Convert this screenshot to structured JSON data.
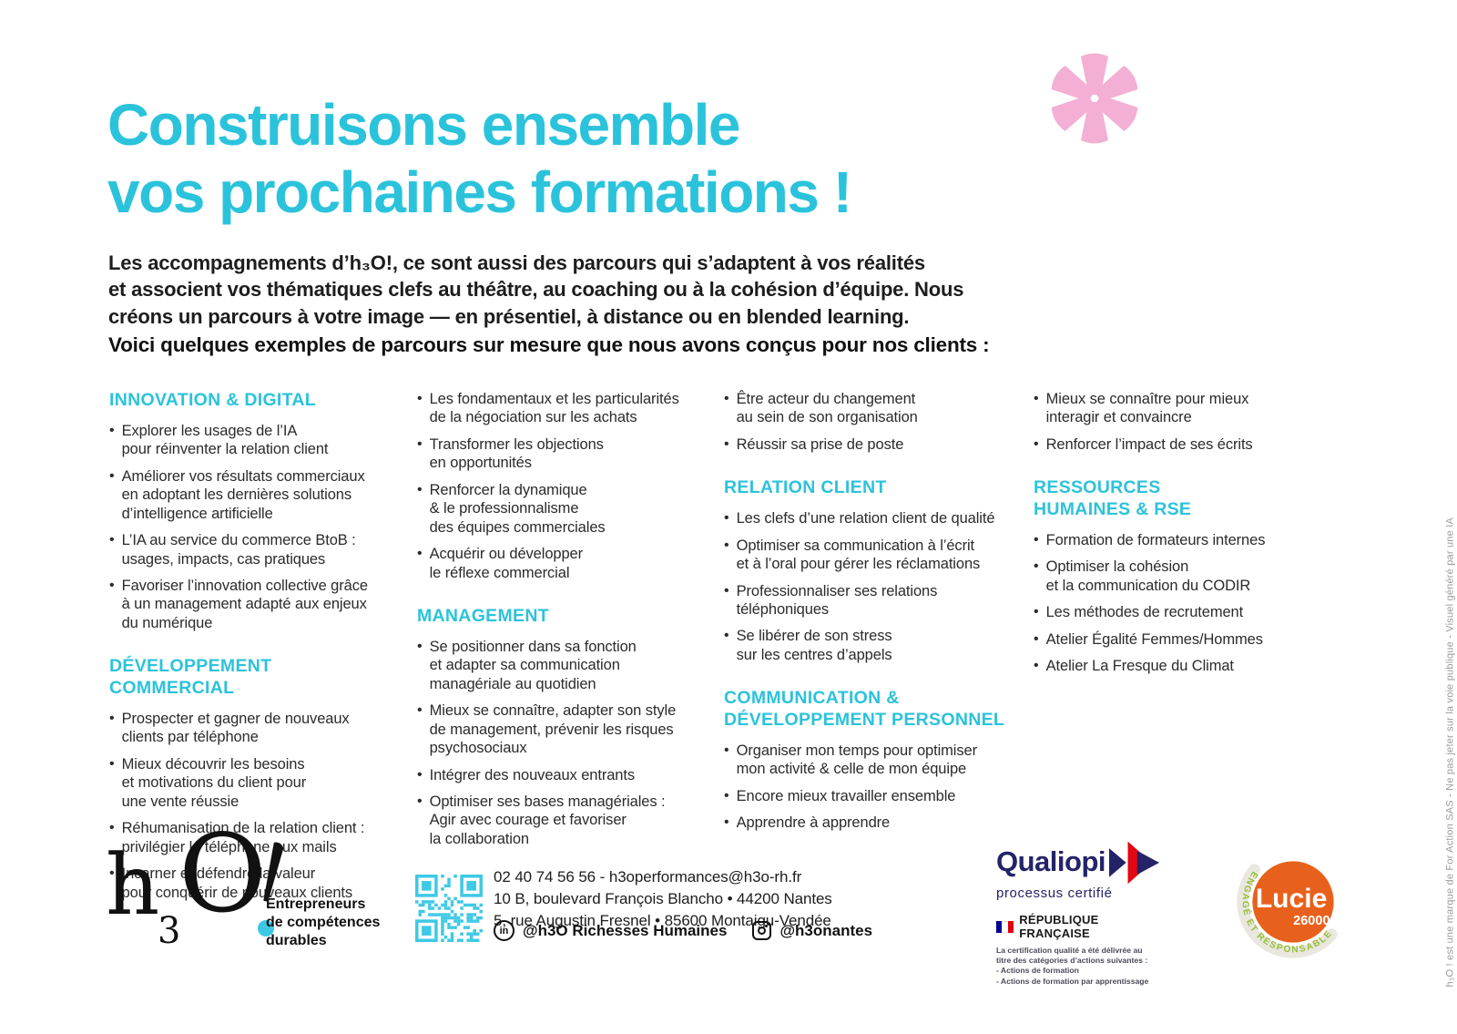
{
  "colors": {
    "accent_cyan": "#2bc3db",
    "pink": "#f3afd4",
    "qualiopi_navy": "#252368",
    "qualiopi_red": "#e30613",
    "flag_blue": "#000091",
    "flag_red": "#e1000f",
    "lucie_orange": "#e8611c",
    "lucie_green": "#97bf36",
    "text": "#2b2b2b"
  },
  "header": {
    "title": "Construisons ensemble\nvos prochaines formations !",
    "asterisk_icon": "asterisk"
  },
  "intro": "Les accompagnements d’h₃O!, ce sont aussi des parcours qui s’adaptent à vos réalités\net associent vos thématiques clefs au théâtre, au coaching ou à la cohésion d’équipe. Nous\ncréons un parcours à votre image — en présentiel, à distance ou en blended learning.",
  "lead_in": "Voici quelques exemples de parcours sur mesure que nous avons conçus pour nos clients :",
  "columns": [
    {
      "blocks": [
        {
          "type": "heading",
          "text": "INNOVATION & DIGITAL"
        },
        {
          "type": "bullet",
          "text": "Explorer les usages de l’IA\npour réinventer la relation client"
        },
        {
          "type": "bullet",
          "text": "Améliorer vos résultats commerciaux\nen adoptant les dernières solutions\nd’intelligence artificielle"
        },
        {
          "type": "bullet",
          "text": "L’IA au service du commerce BtoB :\nusages, impacts, cas pratiques"
        },
        {
          "type": "bullet",
          "text": "Favoriser l’innovation collective grâce\nà un management adapté aux enjeux\ndu numérique"
        },
        {
          "type": "heading",
          "text": "DÉVELOPPEMENT COMMERCIAL"
        },
        {
          "type": "bullet",
          "text": "Prospecter et gagner de nouveaux\nclients par téléphone"
        },
        {
          "type": "bullet",
          "text": "Mieux découvrir les besoins\net motivations du client pour\nune vente réussie"
        },
        {
          "type": "bullet",
          "text": "Réhumanisation de la relation client :\nprivilégier le téléphone aux mails"
        },
        {
          "type": "bullet",
          "text": "Incarner et défendre la valeur\npour conquérir de nouveaux clients"
        }
      ]
    },
    {
      "blocks": [
        {
          "type": "bullet",
          "text": "Les fondamentaux et les particularités\nde la négociation sur les achats"
        },
        {
          "type": "bullet",
          "text": "Transformer les objections\nen opportunités"
        },
        {
          "type": "bullet",
          "text": "Renforcer la dynamique\n& le professionnalisme\ndes équipes commerciales"
        },
        {
          "type": "bullet",
          "text": "Acquérir ou développer\nle réflexe commercial"
        },
        {
          "type": "heading",
          "text": "MANAGEMENT"
        },
        {
          "type": "bullet",
          "text": "Se positionner dans sa fonction\net adapter sa communication\nmanagériale au quotidien"
        },
        {
          "type": "bullet",
          "text": "Mieux se connaître, adapter son style\nde management, prévenir les risques\npsychosociaux"
        },
        {
          "type": "bullet",
          "text": "Intégrer des nouveaux entrants"
        },
        {
          "type": "bullet",
          "text": "Optimiser ses bases managériales :\nAgir avec courage et favoriser\nla collaboration"
        }
      ]
    },
    {
      "blocks": [
        {
          "type": "bullet",
          "text": "Être acteur du changement\nau sein de son organisation"
        },
        {
          "type": "bullet",
          "text": "Réussir sa prise de poste"
        },
        {
          "type": "heading",
          "text": "RELATION CLIENT"
        },
        {
          "type": "bullet",
          "text": "Les clefs d’une relation client de qualité"
        },
        {
          "type": "bullet",
          "text": "Optimiser sa communication à l’écrit\net à l’oral pour gérer les réclamations"
        },
        {
          "type": "bullet",
          "text": "Professionnaliser ses relations\ntéléphoniques"
        },
        {
          "type": "bullet",
          "text": "Se libérer de son stress\nsur les centres d’appels"
        },
        {
          "type": "heading",
          "text": "COMMUNICATION &\nDÉVELOPPEMENT PERSONNEL"
        },
        {
          "type": "bullet",
          "text": "Organiser mon temps pour optimiser\nmon activité & celle de mon équipe"
        },
        {
          "type": "bullet",
          "text": "Encore mieux travailler ensemble"
        },
        {
          "type": "bullet",
          "text": "Apprendre à apprendre"
        }
      ]
    },
    {
      "blocks": [
        {
          "type": "bullet",
          "text": "Mieux se connaître pour mieux\ninteragir et convaincre"
        },
        {
          "type": "bullet",
          "text": "Renforcer l’impact de ses écrits"
        },
        {
          "type": "heading",
          "text": "RESSOURCES\nHUMAINES & RSE"
        },
        {
          "type": "bullet",
          "text": "Formation de formateurs internes"
        },
        {
          "type": "bullet",
          "text": "Optimiser la cohésion\net la communication du CODIR"
        },
        {
          "type": "bullet",
          "text": "Les méthodes de recrutement"
        },
        {
          "type": "bullet",
          "text": "Atelier Égalité Femmes/Hommes"
        },
        {
          "type": "bullet",
          "text": "Atelier La Fresque du Climat"
        }
      ]
    }
  ],
  "footer": {
    "logo": {
      "h": "h",
      "three": "3",
      "o": "O",
      "tagline": "Entrepreneurs\nde compétences\ndurables"
    },
    "contact": {
      "line1": "02 40 74 56 56 - h3operformances@h3o-rh.fr",
      "line2": "10 B, boulevard François Blancho • 44200 Nantes",
      "line3": "5, rue Augustin Fresnel • 85600 Montaigu-Vendée",
      "linkedin_icon_text": "in",
      "linkedin_handle": "@h3O Richesses Humaines",
      "instagram_handle": "@h3onantes"
    },
    "qualiopi": {
      "name": "Qualiopi",
      "subtitle": "processus certifié",
      "republique": "RÉPUBLIQUE FRANÇAISE",
      "small_print": "La certification qualité a été délivrée au\ntitre des catégories d’actions suivantes :\n- Actions de formation\n- Actions de formation par apprentissage"
    },
    "lucie": {
      "name": "Lucie",
      "number": "26000",
      "arc_text": "ENGAGÉ ET RESPONSABLE"
    }
  },
  "side_note": "h₃O ! est une marque de For Action SAS - Ne pas jeter sur la voie publique - Visuel généré par une IA"
}
